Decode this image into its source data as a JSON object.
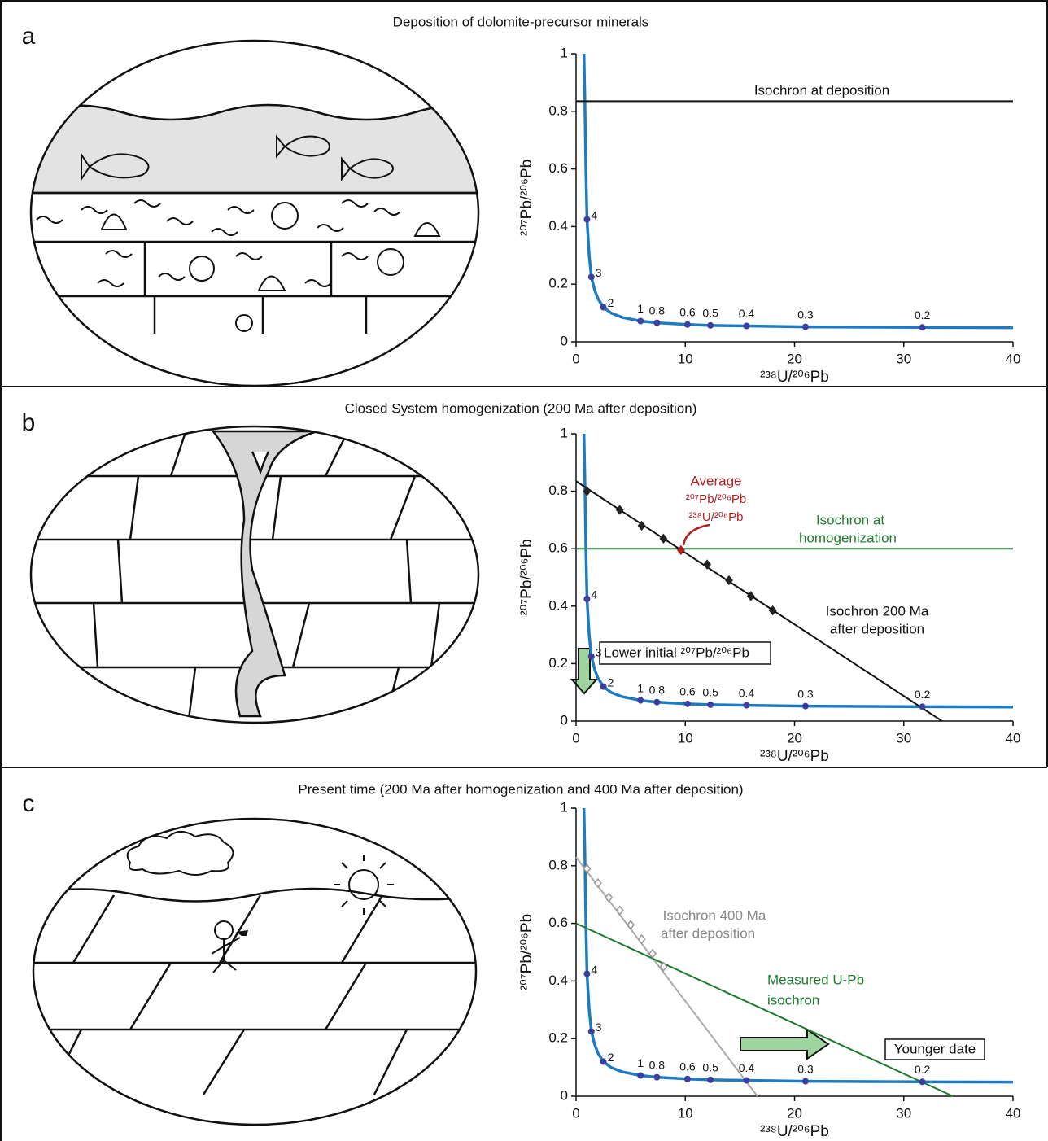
{
  "chart_data": [
    {
      "type": "line",
      "panel": "a",
      "title": "Deposition of dolomite-precursor minerals",
      "x_label": "²³⁸U/²⁰⁶Pb",
      "y_label": "²⁰⁷Pb/²⁰⁶Pb",
      "xlim": [
        0,
        40
      ],
      "ylim": [
        0,
        1
      ],
      "xticks": [
        0,
        10,
        20,
        30,
        40
      ],
      "yticks": [
        0,
        0.2,
        0.4,
        0.6,
        0.8,
        1
      ],
      "annotations": [
        "Isochron at deposition"
      ],
      "series": [
        {
          "color": "#1f7bc1",
          "x": [
            0.72,
            0.8,
            0.9,
            1.0,
            1.2,
            1.4,
            1.7,
            2.0,
            2.5,
            3.2,
            4.2,
            5.9,
            7.4,
            10.2,
            12.3,
            15.6,
            21,
            31.7,
            40
          ],
          "values": [
            1.0,
            0.85,
            0.6,
            0.425,
            0.3,
            0.225,
            0.18,
            0.15,
            0.12,
            0.1,
            0.085,
            0.072,
            0.066,
            0.06,
            0.057,
            0.055,
            0.052,
            0.05,
            0.049
          ]
        },
        {
          "color": "#3c3fa0",
          "marker": "circle",
          "x": [
            1.0,
            1.4,
            2.5,
            5.9,
            7.4,
            10.2,
            12.3,
            15.6,
            21,
            31.7
          ],
          "values": [
            0.425,
            0.225,
            0.12,
            0.072,
            0.066,
            0.06,
            0.057,
            0.055,
            0.052,
            0.05
          ],
          "point_labels": [
            "4",
            "3",
            "2",
            "1",
            "0.8",
            "0.6",
            "0.5",
            "0.4",
            "0.3",
            "0.2"
          ]
        },
        {
          "color": "#111111",
          "x": [
            0,
            40
          ],
          "values": [
            0.835,
            0.835
          ]
        }
      ]
    },
    {
      "type": "line",
      "panel": "b",
      "title": "Closed System homogenization (200 Ma after deposition)",
      "x_label": "²³⁸U/²⁰⁶Pb",
      "y_label": "²⁰⁷Pb/²⁰⁶Pb",
      "xlim": [
        0,
        40
      ],
      "ylim": [
        0,
        1
      ],
      "xticks": [
        0,
        10,
        20,
        30,
        40
      ],
      "yticks": [
        0,
        0.2,
        0.4,
        0.6,
        0.8,
        1
      ],
      "annotations": [
        "Average",
        "²⁰⁷Pb/²⁰⁶Pb",
        "²³⁸U/²⁰⁶Pb",
        "Isochron at",
        "homogenization",
        "Isochron 200 Ma",
        "after deposition"
      ],
      "series": [
        {
          "color": "#1f7bc1",
          "x": [
            0.72,
            0.8,
            0.9,
            1.0,
            1.2,
            1.4,
            1.7,
            2.0,
            2.5,
            3.2,
            4.2,
            5.9,
            7.4,
            10.2,
            12.3,
            15.6,
            21,
            31.7,
            40
          ],
          "values": [
            1.0,
            0.85,
            0.6,
            0.425,
            0.3,
            0.225,
            0.18,
            0.15,
            0.12,
            0.1,
            0.085,
            0.072,
            0.066,
            0.06,
            0.057,
            0.055,
            0.052,
            0.05,
            0.049
          ]
        },
        {
          "color": "#2a7a3a",
          "x": [
            0,
            40
          ],
          "values": [
            0.6,
            0.6
          ]
        },
        {
          "color": "#111111",
          "x": [
            0,
            33.5
          ],
          "values": [
            0.835,
            0
          ]
        },
        {
          "color": "#222222",
          "marker": "diamond",
          "x": [
            1,
            4,
            6,
            8,
            12,
            14,
            16,
            18
          ],
          "values": [
            0.8,
            0.735,
            0.68,
            0.635,
            0.545,
            0.49,
            0.435,
            0.385
          ]
        },
        {
          "color": "#b02020",
          "marker": "diamond",
          "x": [
            9.6
          ],
          "values": [
            0.595
          ]
        },
        {
          "color": "#3c3fa0",
          "marker": "circle",
          "x": [
            1.0,
            1.4,
            2.5,
            5.9,
            7.4,
            10.2,
            12.3,
            15.6,
            21,
            31.7
          ],
          "values": [
            0.425,
            0.225,
            0.12,
            0.072,
            0.066,
            0.06,
            0.057,
            0.055,
            0.052,
            0.05
          ],
          "point_labels": [
            "4",
            "3",
            "2",
            "1",
            "0.8",
            "0.6",
            "0.5",
            "0.4",
            "0.3",
            "0.2"
          ]
        }
      ]
    },
    {
      "type": "line",
      "panel": "c",
      "title": "Present time (200 Ma after homogenization and 400 Ma after deposition)",
      "x_label": "²³⁸U/²⁰⁶Pb",
      "y_label": "²⁰⁷Pb/²⁰⁶Pb",
      "xlim": [
        0,
        40
      ],
      "ylim": [
        0,
        1
      ],
      "xticks": [
        0,
        10,
        20,
        30,
        40
      ],
      "yticks": [
        0,
        0.2,
        0.4,
        0.6,
        0.8,
        1
      ],
      "annotations": [
        "Lower initial ²⁰⁷Pb/²⁰⁶Pb",
        "Isochron 400 Ma",
        "after deposition",
        "Measured U-Pb",
        "isochron",
        "Younger date"
      ],
      "series": [
        {
          "color": "#1f7bc1",
          "x": [
            0.72,
            0.8,
            0.9,
            1.0,
            1.2,
            1.4,
            1.7,
            2.0,
            2.5,
            3.2,
            4.2,
            5.9,
            7.4,
            10.2,
            12.3,
            15.6,
            21,
            31.7,
            40
          ],
          "values": [
            1.0,
            0.85,
            0.6,
            0.425,
            0.3,
            0.225,
            0.18,
            0.15,
            0.12,
            0.1,
            0.085,
            0.072,
            0.066,
            0.06,
            0.057,
            0.055,
            0.052,
            0.05,
            0.049
          ]
        },
        {
          "color": "#aaaaaa",
          "x": [
            0,
            16.6
          ],
          "values": [
            0.83,
            0
          ]
        },
        {
          "color": "#1f7a2e",
          "x": [
            0,
            34.5
          ],
          "values": [
            0.6,
            0
          ]
        },
        {
          "color": "#999999",
          "marker": "diamond",
          "hollow": true,
          "x": [
            1,
            2,
            3,
            4,
            5,
            6,
            7,
            8
          ],
          "values": [
            0.79,
            0.74,
            0.69,
            0.645,
            0.595,
            0.545,
            0.495,
            0.45
          ]
        },
        {
          "color": "#3c3fa0",
          "marker": "circle",
          "x": [
            1.0,
            1.4,
            2.5,
            5.9,
            7.4,
            10.2,
            12.3,
            15.6,
            21,
            31.7
          ],
          "values": [
            0.425,
            0.225,
            0.12,
            0.072,
            0.066,
            0.06,
            0.057,
            0.055,
            0.052,
            0.05
          ],
          "point_labels": [
            "4",
            "3",
            "2",
            "1",
            "0.8",
            "0.6",
            "0.5",
            "0.4",
            "0.3",
            "0.2"
          ]
        }
      ]
    }
  ]
}
